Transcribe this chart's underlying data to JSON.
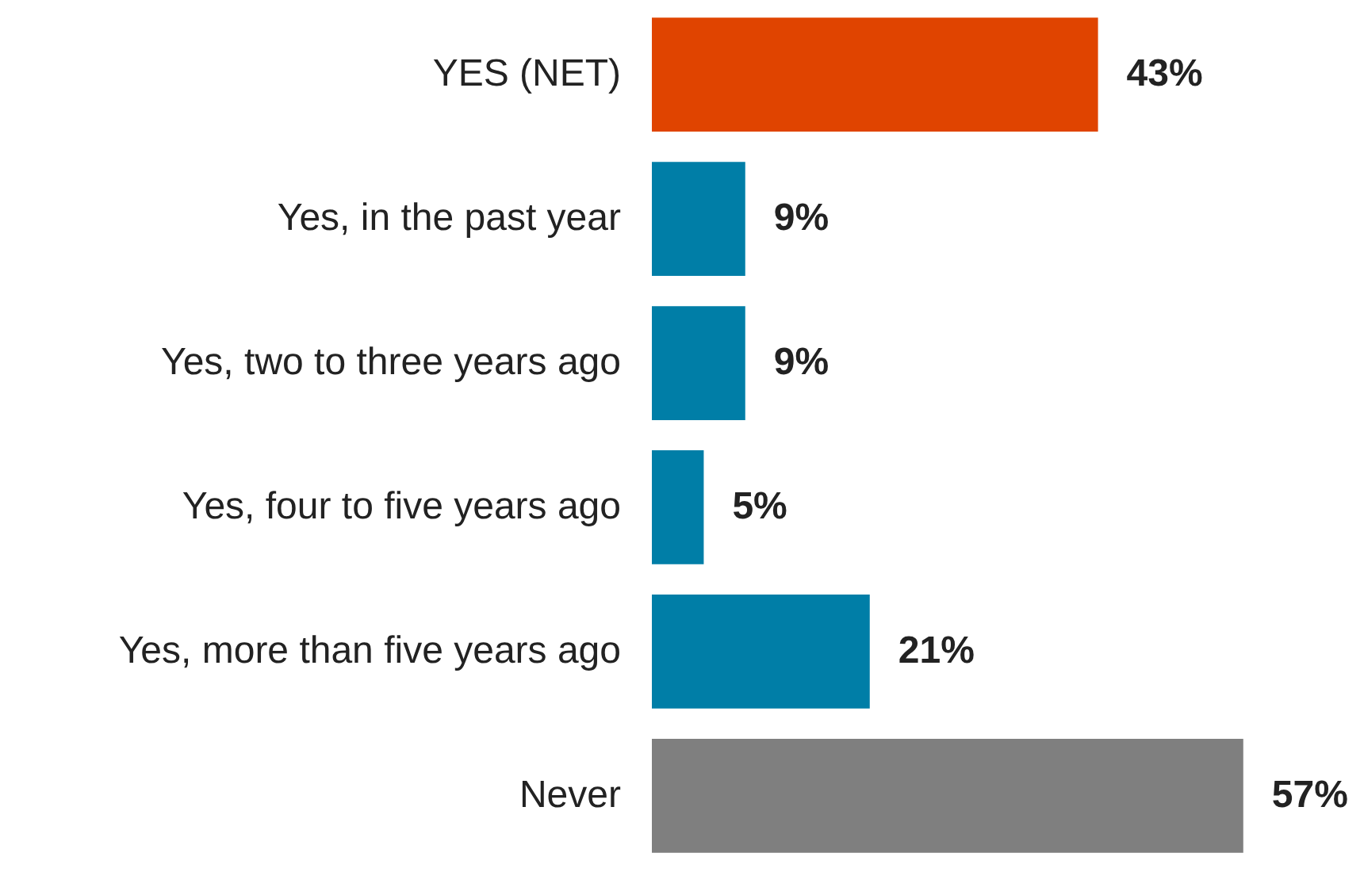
{
  "chart_data": {
    "type": "bar",
    "orientation": "horizontal",
    "categories": [
      "YES (NET)",
      "Yes, in the past year",
      "Yes, two to three years ago",
      "Yes, four to five years ago",
      "Yes, more than five years ago",
      "Never"
    ],
    "values": [
      43,
      9,
      9,
      5,
      21,
      57
    ],
    "colors": [
      "#e04400",
      "#007ea7",
      "#007ea7",
      "#007ea7",
      "#007ea7",
      "#7f7f7f"
    ],
    "value_labels": [
      "43%",
      "9%",
      "9%",
      "5%",
      "21%",
      "57%"
    ]
  }
}
